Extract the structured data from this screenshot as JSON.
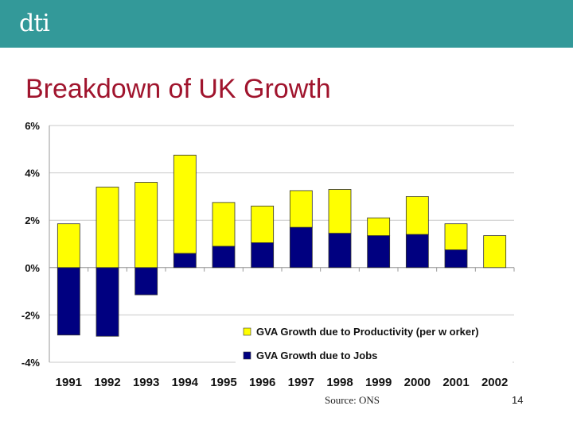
{
  "header": {
    "logo_text": "dti",
    "color": "#339999"
  },
  "title": "Breakdown of UK Growth",
  "footer": {
    "source": "Source: ONS",
    "page_number": "14"
  },
  "chart_data": {
    "type": "bar",
    "stacked": true,
    "categories": [
      "1991",
      "1992",
      "1993",
      "1994",
      "1995",
      "1996",
      "1997",
      "1998",
      "1999",
      "2000",
      "2001",
      "2002"
    ],
    "series": [
      {
        "name": "GVA Growth due to Productivity (per w orker)",
        "color": "#ffff00",
        "values": [
          1.85,
          3.4,
          3.6,
          4.15,
          1.85,
          1.55,
          1.55,
          1.85,
          0.75,
          1.6,
          1.1,
          1.35
        ]
      },
      {
        "name": "GVA Growth due to Jobs",
        "color": "#000080",
        "values": [
          -2.85,
          -2.9,
          -1.15,
          0.6,
          0.9,
          1.05,
          1.7,
          1.45,
          1.35,
          1.4,
          0.75,
          0.0
        ]
      }
    ],
    "y_ticks": [
      "6%",
      "4%",
      "2%",
      "0%",
      "-2%",
      "-4%"
    ],
    "ylim": [
      -4,
      6
    ],
    "grid": true,
    "legend_position": "bottom-right"
  }
}
